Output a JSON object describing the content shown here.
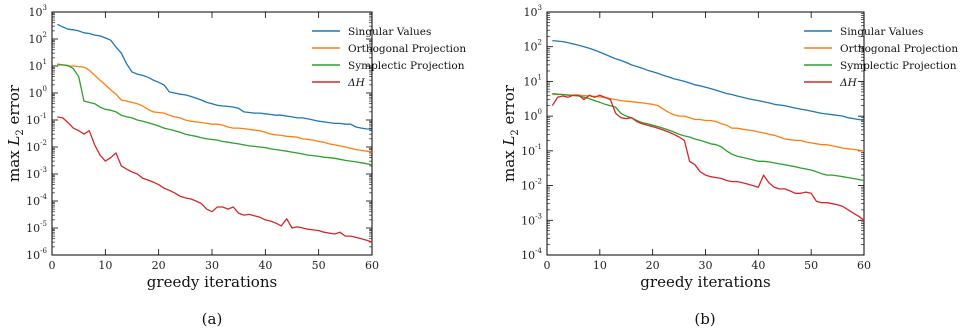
{
  "chart_data": [
    {
      "type": "line",
      "caption": "(a)",
      "xlabel": "greedy iterations",
      "ylabel_prefix": "max ",
      "ylabel_var": "L",
      "ylabel_sub": "2",
      "ylabel_suffix": " error",
      "yscale": "log",
      "xlim": [
        0,
        60
      ],
      "ylim_exp": [
        -6,
        3
      ],
      "xticks": [
        "0",
        "10",
        "20",
        "30",
        "40",
        "50",
        "60"
      ],
      "ytick_base": "10",
      "ytick_exps": [
        "-6",
        "-5",
        "-4",
        "-3",
        "-2",
        "-1",
        "0",
        "1",
        "2",
        "3"
      ],
      "legend_position": "top-right",
      "x": [
        1,
        2,
        3,
        4,
        5,
        6,
        7,
        8,
        9,
        10,
        11,
        12,
        13,
        14,
        15,
        16,
        17,
        18,
        19,
        20,
        21,
        22,
        23,
        24,
        25,
        26,
        27,
        28,
        29,
        30,
        31,
        32,
        33,
        34,
        35,
        36,
        37,
        38,
        39,
        40,
        41,
        42,
        43,
        44,
        45,
        46,
        47,
        48,
        49,
        50,
        51,
        52,
        53,
        54,
        55,
        56,
        57,
        58,
        59,
        60
      ],
      "series": [
        {
          "name": "Singular Values",
          "color": "#1f77b4",
          "values": [
            350,
            280,
            230,
            220,
            200,
            170,
            160,
            140,
            130,
            110,
            90,
            50,
            30,
            12,
            6,
            5,
            4.5,
            3.8,
            3,
            2.5,
            2,
            1.1,
            1,
            0.9,
            0.85,
            0.75,
            0.65,
            0.55,
            0.45,
            0.4,
            0.35,
            0.33,
            0.32,
            0.3,
            0.27,
            0.2,
            0.19,
            0.18,
            0.18,
            0.17,
            0.16,
            0.15,
            0.15,
            0.14,
            0.13,
            0.12,
            0.12,
            0.11,
            0.1,
            0.09,
            0.085,
            0.08,
            0.075,
            0.075,
            0.07,
            0.07,
            0.055,
            0.05,
            0.047,
            0.046
          ]
        },
        {
          "name": "Orthogonal Projection",
          "color": "#ff7f0e",
          "values": [
            12,
            11,
            10,
            10,
            9.5,
            9,
            7,
            4.5,
            3,
            2,
            1.3,
            0.9,
            0.55,
            0.5,
            0.45,
            0.4,
            0.33,
            0.25,
            0.2,
            0.19,
            0.18,
            0.15,
            0.13,
            0.12,
            0.1,
            0.09,
            0.085,
            0.08,
            0.075,
            0.07,
            0.07,
            0.065,
            0.055,
            0.05,
            0.05,
            0.048,
            0.045,
            0.042,
            0.04,
            0.035,
            0.03,
            0.028,
            0.027,
            0.025,
            0.024,
            0.023,
            0.02,
            0.019,
            0.018,
            0.016,
            0.015,
            0.013,
            0.012,
            0.011,
            0.01,
            0.009,
            0.008,
            0.0075,
            0.007,
            0.0065
          ]
        },
        {
          "name": "Symplectic Projection",
          "color": "#2ca02c",
          "values": [
            11,
            11,
            10.5,
            8,
            4,
            0.5,
            0.45,
            0.4,
            0.3,
            0.25,
            0.23,
            0.2,
            0.15,
            0.13,
            0.12,
            0.1,
            0.09,
            0.08,
            0.07,
            0.06,
            0.05,
            0.045,
            0.04,
            0.035,
            0.03,
            0.027,
            0.025,
            0.022,
            0.02,
            0.019,
            0.018,
            0.016,
            0.015,
            0.014,
            0.013,
            0.012,
            0.011,
            0.0105,
            0.01,
            0.0095,
            0.0085,
            0.008,
            0.0075,
            0.007,
            0.0065,
            0.006,
            0.0055,
            0.005,
            0.0048,
            0.0045,
            0.0042,
            0.004,
            0.0038,
            0.0035,
            0.0032,
            0.003,
            0.0028,
            0.0026,
            0.0024,
            0.0022
          ]
        },
        {
          "name": "ΔH",
          "color": "#d62728",
          "values": [
            0.13,
            0.12,
            0.08,
            0.05,
            0.04,
            0.03,
            0.04,
            0.012,
            0.005,
            0.003,
            0.004,
            0.006,
            0.002,
            0.0015,
            0.0012,
            0.001,
            0.0007,
            0.0006,
            0.0005,
            0.0004,
            0.0003,
            0.00025,
            0.0002,
            0.00015,
            0.00013,
            0.00012,
            0.0001,
            8e-05,
            5e-05,
            4e-05,
            6e-05,
            6e-05,
            5e-05,
            6e-05,
            3.5e-05,
            3e-05,
            3.2e-05,
            2.8e-05,
            2.5e-05,
            2e-05,
            1.8e-05,
            1.5e-05,
            1.2e-05,
            2.2e-05,
            1e-05,
            1.1e-05,
            1e-05,
            9e-06,
            8.5e-06,
            8e-06,
            7e-06,
            6.5e-06,
            6e-06,
            7e-06,
            5e-06,
            5e-06,
            4.5e-06,
            4e-06,
            3.5e-06,
            3e-06
          ]
        }
      ]
    },
    {
      "type": "line",
      "caption": "(b)",
      "xlabel": "greedy iterations",
      "ylabel_prefix": "max ",
      "ylabel_var": "L",
      "ylabel_sub": "2",
      "ylabel_suffix": " error",
      "yscale": "log",
      "xlim": [
        0,
        60
      ],
      "ylim_exp": [
        -4,
        3
      ],
      "xticks": [
        "0",
        "10",
        "20",
        "30",
        "40",
        "50",
        "60"
      ],
      "ytick_base": "10",
      "ytick_exps": [
        "-4",
        "-3",
        "-2",
        "-1",
        "0",
        "1",
        "2",
        "3"
      ],
      "legend_position": "top-right",
      "x": [
        1,
        2,
        3,
        4,
        5,
        6,
        7,
        8,
        9,
        10,
        11,
        12,
        13,
        14,
        15,
        16,
        17,
        18,
        19,
        20,
        21,
        22,
        23,
        24,
        25,
        26,
        27,
        28,
        29,
        30,
        31,
        32,
        33,
        34,
        35,
        36,
        37,
        38,
        39,
        40,
        41,
        42,
        43,
        44,
        45,
        46,
        47,
        48,
        49,
        50,
        51,
        52,
        53,
        54,
        55,
        56,
        57,
        58,
        59,
        60
      ],
      "series": [
        {
          "name": "Singular Values",
          "color": "#1f77b4",
          "values": [
            150,
            145,
            140,
            130,
            120,
            110,
            100,
            90,
            80,
            70,
            60,
            52,
            45,
            40,
            35,
            30,
            27,
            24,
            21,
            19,
            17,
            15,
            13.5,
            12,
            11,
            10,
            9,
            8,
            7.5,
            6.8,
            6.2,
            5.6,
            5,
            4.5,
            4.2,
            3.8,
            3.5,
            3.2,
            3,
            2.8,
            2.6,
            2.4,
            2.2,
            2.1,
            2,
            1.85,
            1.7,
            1.6,
            1.5,
            1.4,
            1.3,
            1.2,
            1.15,
            1.1,
            1.05,
            1,
            0.9,
            0.85,
            0.8,
            0.75
          ]
        },
        {
          "name": "Orthogonal Projection",
          "color": "#ff7f0e",
          "values": [
            4.2,
            4.2,
            4.2,
            4.1,
            4,
            4,
            3.9,
            3.8,
            3.7,
            3.6,
            3.4,
            3.2,
            3,
            2.8,
            2.7,
            2.6,
            2.5,
            2.4,
            2.3,
            2.2,
            2,
            1.6,
            1.3,
            1.1,
            1,
            1,
            0.9,
            0.8,
            0.8,
            0.75,
            0.75,
            0.7,
            0.6,
            0.55,
            0.45,
            0.45,
            0.42,
            0.4,
            0.38,
            0.35,
            0.33,
            0.3,
            0.28,
            0.25,
            0.22,
            0.21,
            0.2,
            0.2,
            0.18,
            0.17,
            0.16,
            0.15,
            0.15,
            0.14,
            0.13,
            0.12,
            0.115,
            0.11,
            0.105,
            0.1
          ]
        },
        {
          "name": "Symplectic Projection",
          "color": "#2ca02c",
          "values": [
            4.5,
            4.3,
            4.2,
            4,
            3.9,
            3.8,
            3.5,
            3.2,
            2.8,
            2.5,
            2.2,
            2,
            1.8,
            1.2,
            1,
            0.9,
            0.75,
            0.65,
            0.6,
            0.55,
            0.5,
            0.45,
            0.4,
            0.35,
            0.3,
            0.27,
            0.25,
            0.22,
            0.2,
            0.18,
            0.16,
            0.15,
            0.13,
            0.1,
            0.08,
            0.07,
            0.065,
            0.06,
            0.055,
            0.05,
            0.05,
            0.048,
            0.045,
            0.042,
            0.04,
            0.037,
            0.035,
            0.032,
            0.03,
            0.028,
            0.025,
            0.022,
            0.02,
            0.02,
            0.019,
            0.018,
            0.017,
            0.016,
            0.015,
            0.014
          ]
        },
        {
          "name": "ΔH",
          "color": "#d62728",
          "values": [
            2,
            3.5,
            3.8,
            3.5,
            4,
            4,
            3,
            4,
            3.5,
            4,
            3.5,
            3,
            1.2,
            0.9,
            0.85,
            0.9,
            0.7,
            0.6,
            0.55,
            0.5,
            0.45,
            0.4,
            0.35,
            0.3,
            0.25,
            0.2,
            0.05,
            0.04,
            0.025,
            0.02,
            0.018,
            0.017,
            0.016,
            0.014,
            0.013,
            0.013,
            0.012,
            0.011,
            0.01,
            0.009,
            0.02,
            0.012,
            0.009,
            0.008,
            0.008,
            0.007,
            0.006,
            0.006,
            0.0065,
            0.006,
            0.0035,
            0.0032,
            0.0032,
            0.003,
            0.0028,
            0.0025,
            0.002,
            0.0016,
            0.0013,
            0.001
          ]
        }
      ]
    }
  ]
}
